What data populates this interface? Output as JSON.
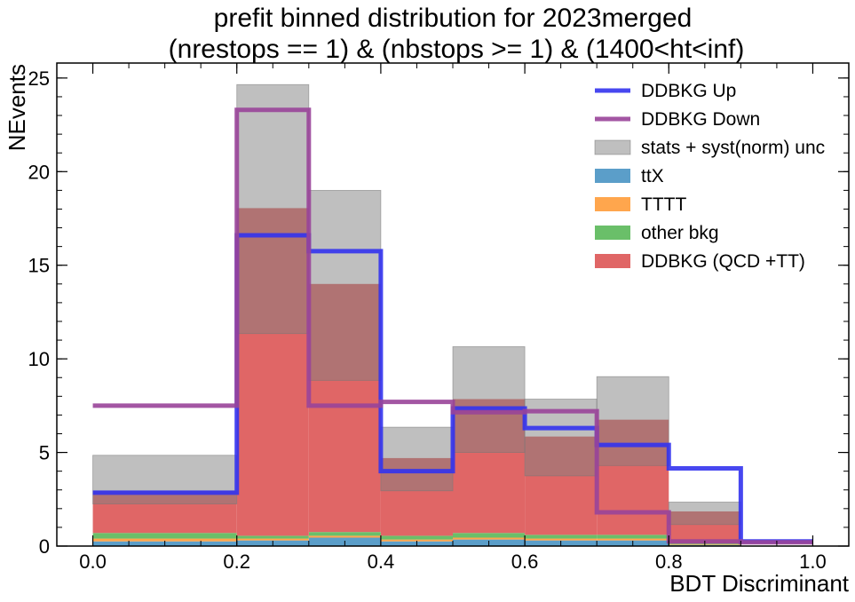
{
  "chart_data": {
    "type": "bar",
    "title_line1": "prefit binned distribution for 2023merged",
    "title_line2": "(nrestops == 1) & (nbstops >= 1) & (1400<ht<inf)",
    "xlabel": "BDT Discriminant",
    "ylabel": "NEvents",
    "xlim": [
      -0.05,
      1.05
    ],
    "ylim": [
      0,
      25.8
    ],
    "bin_edges": [
      0.0,
      0.2,
      0.3,
      0.4,
      0.5,
      0.6,
      0.7,
      0.8,
      0.9,
      1.0
    ],
    "x_ticks": [
      "0.0",
      "0.2",
      "0.4",
      "0.6",
      "0.8",
      "1.0"
    ],
    "y_ticks": [
      "0",
      "5",
      "10",
      "15",
      "20",
      "25"
    ],
    "stacked_series": [
      {
        "name": "ttX",
        "color": "#5b9ec9",
        "values": [
          0.25,
          0.3,
          0.45,
          0.25,
          0.35,
          0.3,
          0.3,
          0.05,
          0.0
        ]
      },
      {
        "name": "TTTT",
        "color": "#ffa64d",
        "values": [
          0.15,
          0.1,
          0.1,
          0.1,
          0.1,
          0.1,
          0.1,
          0.03,
          0.0
        ]
      },
      {
        "name": "other bkg",
        "color": "#6abf69",
        "values": [
          0.3,
          0.15,
          0.2,
          0.2,
          0.25,
          0.2,
          0.2,
          0.05,
          0.0
        ]
      },
      {
        "name": "DDBKG (QCD +TT)",
        "color": "#e06666",
        "values": [
          2.25,
          17.5,
          13.25,
          4.15,
          7.15,
          5.25,
          6.15,
          1.72,
          0.0
        ]
      }
    ],
    "uncertainty_band": {
      "name": "stats + syst(norm) unc",
      "color": "#bfbfbf",
      "low": [
        2.25,
        11.35,
        8.85,
        2.95,
        5.0,
        3.75,
        4.3,
        1.15,
        0.0
      ],
      "high": [
        4.85,
        24.65,
        19.0,
        6.35,
        10.65,
        7.85,
        9.05,
        2.35,
        0.0
      ]
    },
    "step_series": [
      {
        "name": "DDBKG Up",
        "color": "#3333ee",
        "values": [
          2.85,
          16.6,
          15.75,
          4.0,
          7.35,
          6.3,
          5.4,
          4.15,
          0.25
        ]
      },
      {
        "name": "DDBKG Down",
        "color": "#994499",
        "values": [
          7.5,
          23.3,
          7.5,
          7.7,
          7.15,
          7.2,
          1.8,
          0.25,
          0.2
        ]
      }
    ],
    "legend_position": "top-right"
  }
}
